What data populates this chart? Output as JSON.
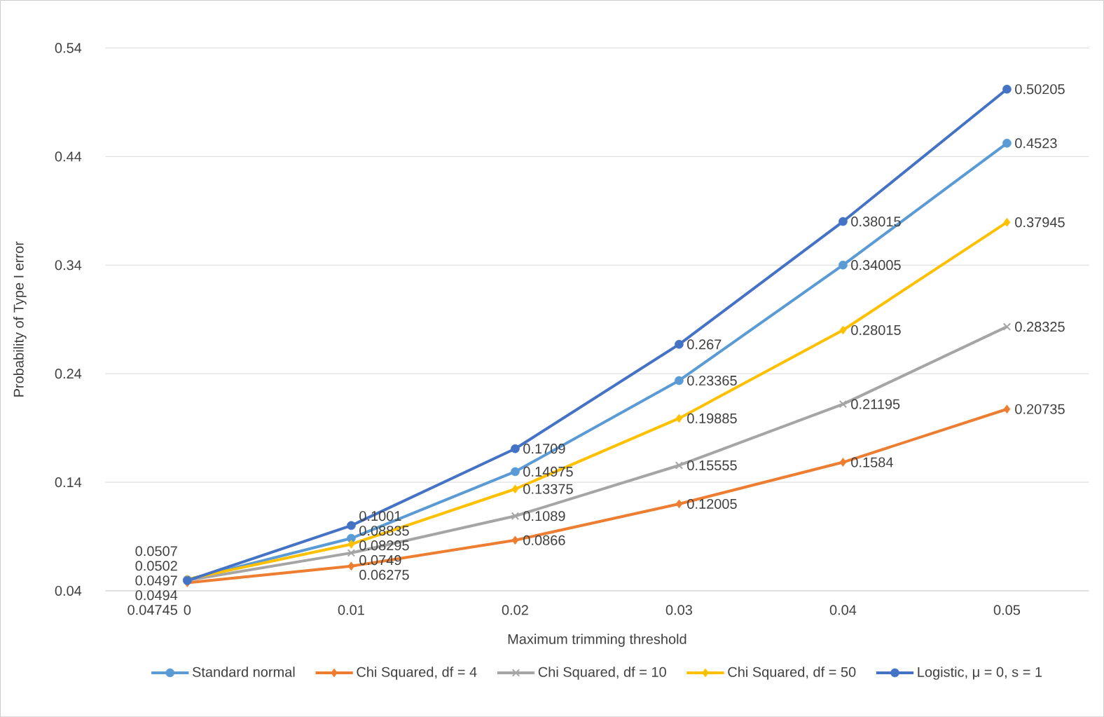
{
  "chart_data": {
    "type": "line",
    "xlabel": "Maximum trimming threshold",
    "ylabel": "Probability of Type I error",
    "categories": [
      "0",
      "0.01",
      "0.02",
      "0.03",
      "0.04",
      "0.05"
    ],
    "ylim": [
      0.04,
      0.54
    ],
    "yticks": [
      0.04,
      0.14,
      0.24,
      0.34,
      0.44,
      0.54
    ],
    "grid": "y",
    "legend": "bottom",
    "data_labels": true,
    "series": [
      {
        "name": "Standard normal",
        "color": "#5b9bd5",
        "marker": "circle",
        "values": [
          0.0502,
          0.08835,
          0.14975,
          0.23365,
          0.34005,
          0.4523
        ]
      },
      {
        "name": "Chi Squared, df = 4",
        "color": "#ed7d31",
        "marker": "diamond",
        "values": [
          0.04745,
          0.06275,
          0.0866,
          0.12005,
          0.1584,
          0.20735
        ]
      },
      {
        "name": "Chi Squared, df = 10",
        "color": "#a5a5a5",
        "marker": "cross",
        "values": [
          0.0497,
          0.0749,
          0.1089,
          0.15555,
          0.21195,
          0.28325
        ]
      },
      {
        "name": "Chi Squared, df = 50",
        "color": "#ffc000",
        "marker": "diamond",
        "values": [
          0.0507,
          0.08295,
          0.13375,
          0.19885,
          0.28015,
          0.37945
        ]
      },
      {
        "name": "Logistic, μ = 0, s = 1",
        "color": "#4472c4",
        "marker": "circle",
        "values": [
          0.0494,
          0.1001,
          0.1709,
          0.267,
          0.38015,
          0.50205
        ]
      }
    ]
  }
}
